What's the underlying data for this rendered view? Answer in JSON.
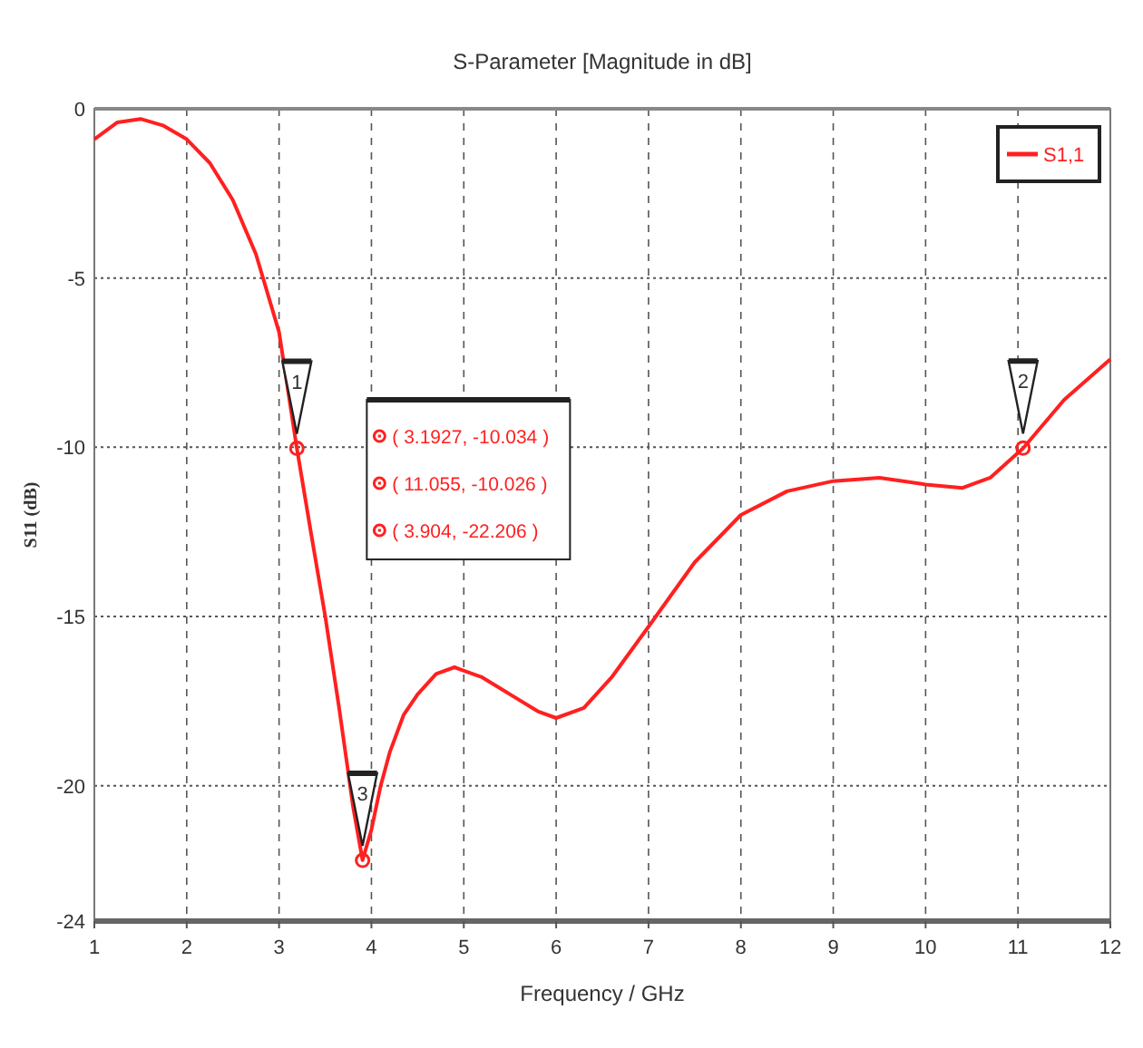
{
  "chart_data": {
    "type": "line",
    "title": "S-Parameter [Magnitude in dB]",
    "xlabel": "Frequency / GHz",
    "ylabel": "S11 (dB)",
    "x": [
      1,
      1.25,
      1.5,
      1.75,
      2,
      2.25,
      2.5,
      2.75,
      3,
      3.1927,
      3.35,
      3.5,
      3.65,
      3.8,
      3.904,
      4,
      4.1,
      4.2,
      4.35,
      4.5,
      4.7,
      4.9,
      5.2,
      5.5,
      5.8,
      6,
      6.3,
      6.6,
      7,
      7.5,
      8,
      8.5,
      9,
      9.5,
      10,
      10.4,
      10.7,
      11.055,
      11.5,
      12
    ],
    "series": [
      {
        "name": "S1,1",
        "color": "#ff2020",
        "values": [
          -0.9,
          -0.4,
          -0.3,
          -0.5,
          -0.9,
          -1.6,
          -2.7,
          -4.3,
          -6.6,
          -10.03,
          -12.6,
          -15.0,
          -17.7,
          -20.6,
          -22.2,
          -21.3,
          -20.0,
          -19.0,
          -17.9,
          -17.3,
          -16.7,
          -16.5,
          -16.8,
          -17.3,
          -17.8,
          -18.0,
          -17.7,
          -16.8,
          -15.3,
          -13.4,
          -12.0,
          -11.3,
          -11.0,
          -10.9,
          -11.1,
          -11.2,
          -10.9,
          -10.03,
          -8.6,
          -7.4
        ]
      }
    ],
    "xlim": [
      1,
      12
    ],
    "ylim": [
      -24,
      0
    ],
    "xticks": [
      1,
      2,
      3,
      4,
      5,
      6,
      7,
      8,
      9,
      10,
      11,
      12
    ],
    "yticks": [
      0,
      -5,
      -10,
      -15,
      -20,
      -24
    ],
    "grid": true,
    "legend": "top right",
    "marker": "none",
    "line_style": "solid",
    "annotations": [
      {
        "text": "1",
        "x": 3.1927,
        "y": -10.034
      },
      {
        "text": "2",
        "x": 11.055,
        "y": -10.026
      },
      {
        "text": "3",
        "x": 3.904,
        "y": -22.206
      },
      "( 3.1927, -10.034 )",
      "( 11.055, -10.026 )",
      "( 3.904, -22.206 )"
    ]
  }
}
